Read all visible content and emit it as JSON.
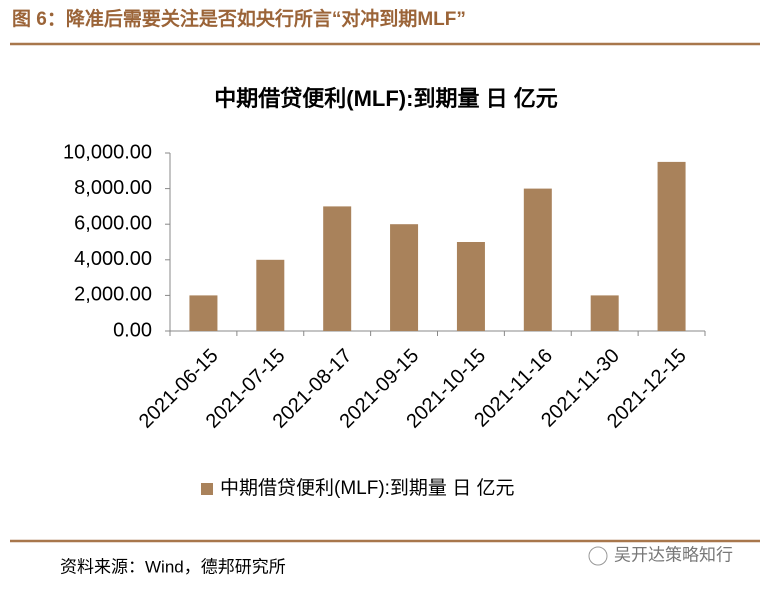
{
  "header": {
    "title": "图 6：降准后需要关注是否如央行所言“对冲到期MLF”"
  },
  "chart_data": {
    "type": "bar",
    "title": "中期借贷便利(MLF):到期量 日 亿元",
    "categories": [
      "2021-06-15",
      "2021-07-15",
      "2021-08-17",
      "2021-09-15",
      "2021-10-15",
      "2021-11-16",
      "2021-11-30",
      "2021-12-15"
    ],
    "series": [
      {
        "name": "中期借贷便利(MLF):到期量 日 亿元",
        "color": "#a9825b",
        "values": [
          2000,
          4000,
          7000,
          6000,
          5000,
          8000,
          2000,
          9500
        ]
      }
    ],
    "ylim": [
      0,
      10000
    ],
    "yticks": [
      {
        "value": 0,
        "label": "0.00"
      },
      {
        "value": 2000,
        "label": "2,000.00"
      },
      {
        "value": 4000,
        "label": "4,000.00"
      },
      {
        "value": 6000,
        "label": "6,000.00"
      },
      {
        "value": 8000,
        "label": "8,000.00"
      },
      {
        "value": 10000,
        "label": "10,000.00"
      }
    ],
    "grid": false,
    "legend": "bottom"
  },
  "footer": {
    "source": "资料来源：Wind，德邦研究所",
    "watermark": "吴开达策略知行"
  }
}
